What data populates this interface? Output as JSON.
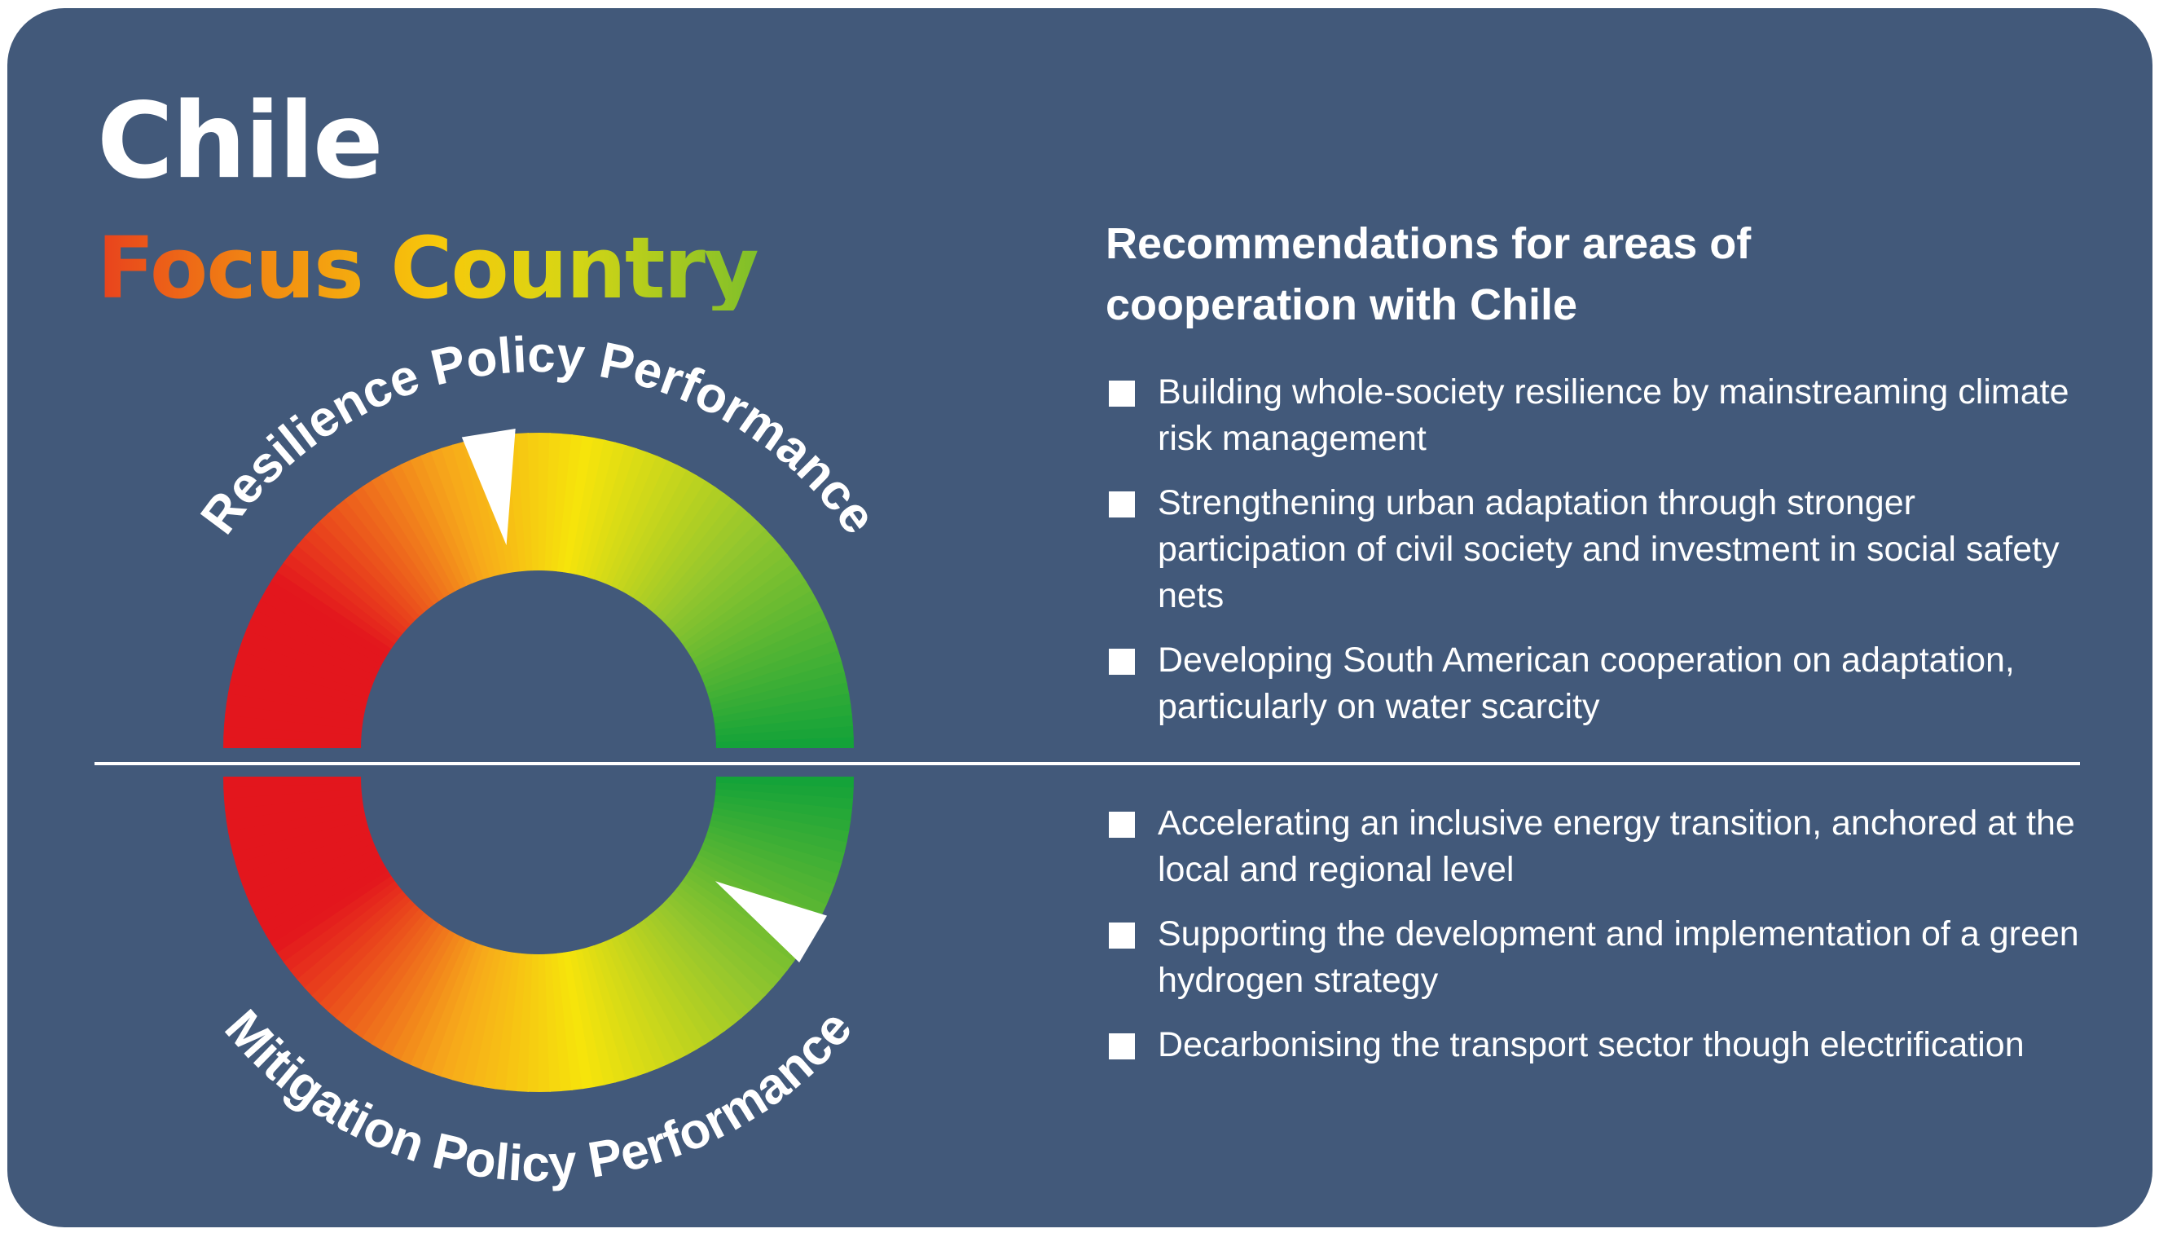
{
  "header": {
    "country": "Chile",
    "subtitle": "Focus Country"
  },
  "gauges": {
    "resilience": {
      "label": "Resilience Policy Performance",
      "indicator_fraction": 0.45
    },
    "mitigation": {
      "label": "Mitigation Policy Performance",
      "indicator_fraction": 0.83
    }
  },
  "recommendations": {
    "heading": "Recommendations for areas of cooperation with Chile",
    "resilience_items": [
      "Building whole-society resilience by mainstreaming climate risk management",
      "Strengthening urban adaptation through stronger participation of civil society and investment in social safety nets",
      "Developing South American cooperation on adaptation, particularly on water scarcity"
    ],
    "mitigation_items": [
      "Accelerating an inclusive energy transition, anchored at the local and regional level",
      "Supporting the development and implementation of a green hydrogen strategy",
      "Decarbonising the transport sector though electrification"
    ]
  },
  "colors": {
    "background": "#42597a",
    "text": "#ffffff",
    "gradient_red": "#e3161d",
    "gradient_orange": "#f7a81b",
    "gradient_yellow": "#f6e40b",
    "gradient_green": "#11a239"
  }
}
